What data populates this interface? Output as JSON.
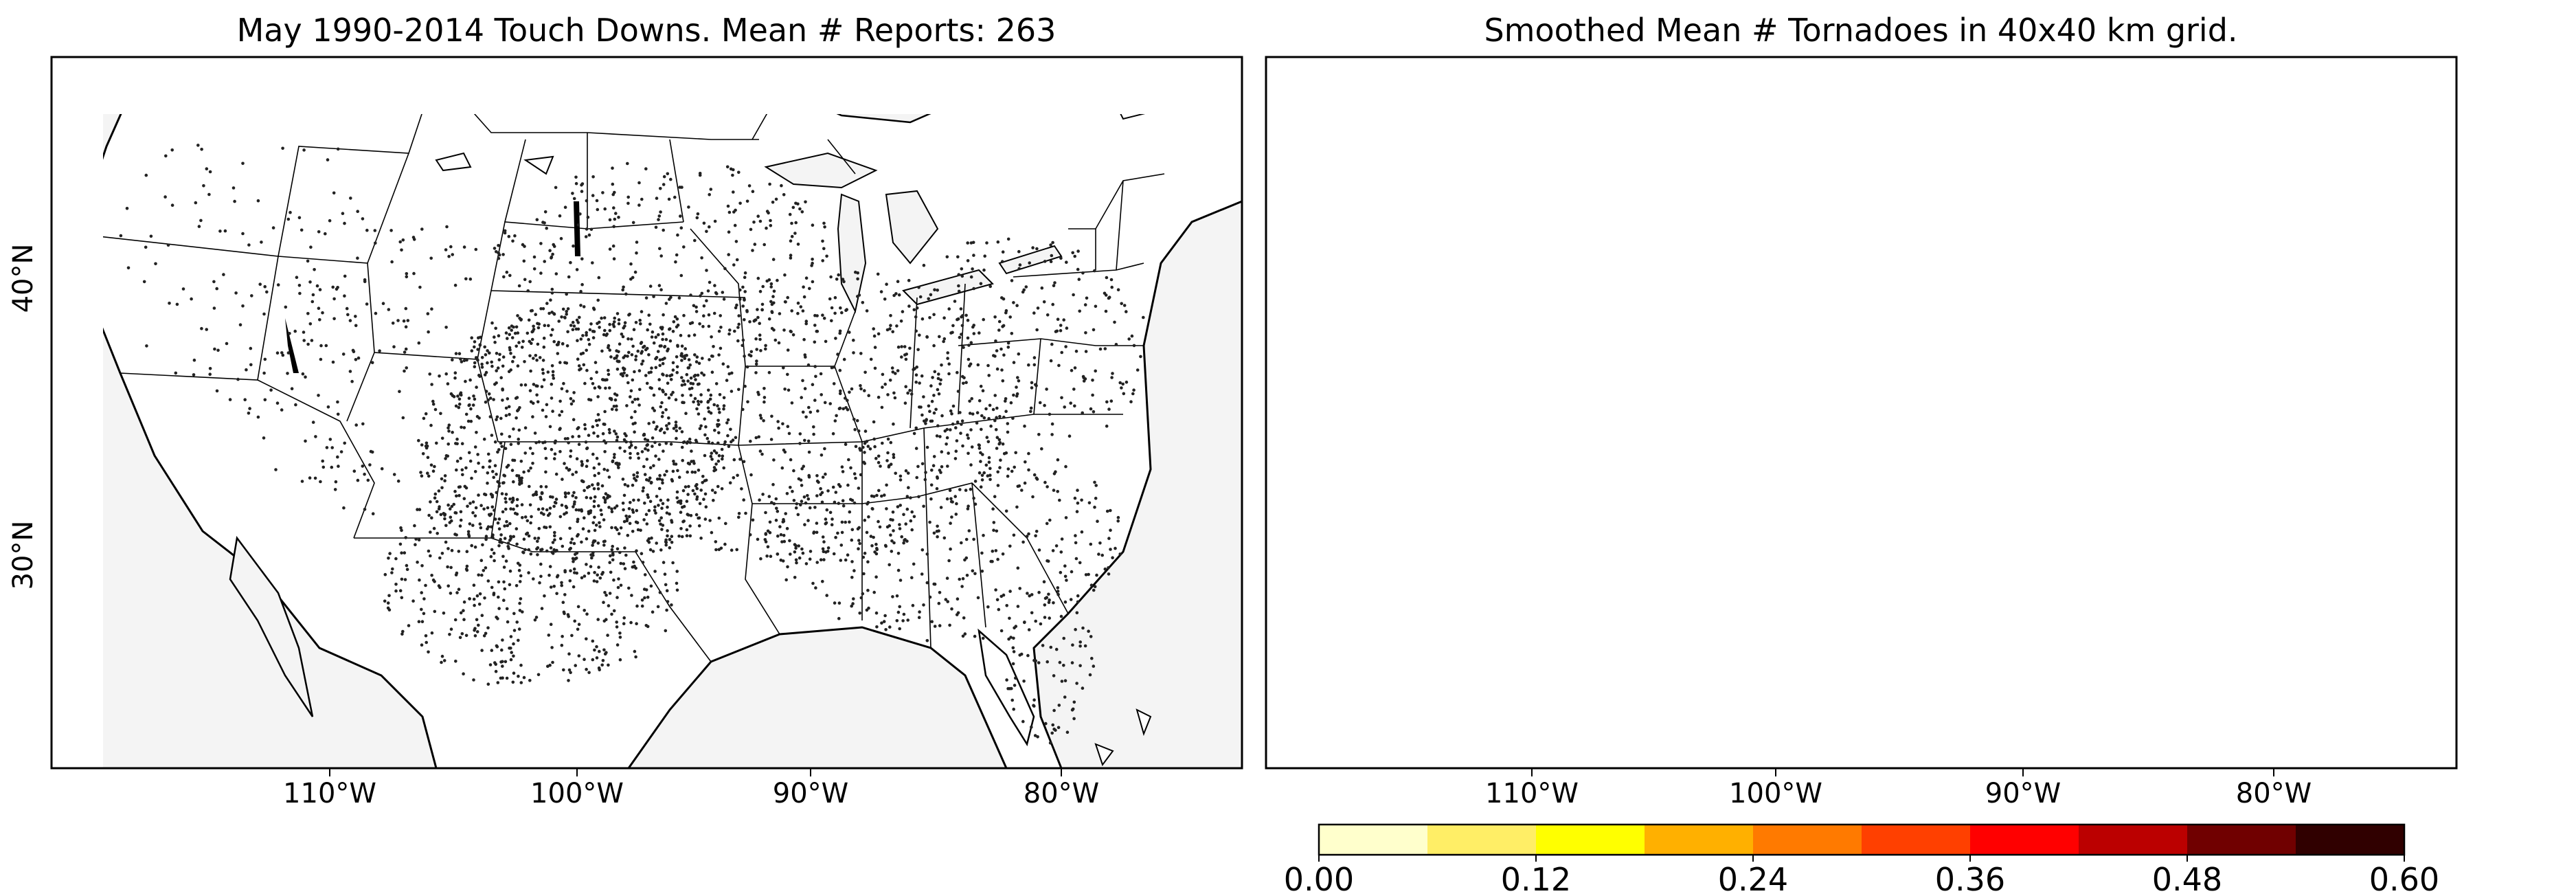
{
  "panels": [
    {
      "title": "May 1990-2014 Touch Downs. Mean # Reports: 263",
      "kind": "points"
    },
    {
      "title": "Smoothed Mean # Tornadoes in 40x40 km grid.",
      "kind": "contour"
    }
  ],
  "axes": {
    "x_ticks": [
      "110°W",
      "100°W",
      "90°W",
      "80°W"
    ],
    "y_ticks": [
      "40°N",
      "30°N"
    ]
  },
  "colorbar": {
    "tick_labels": [
      "0.00",
      "0.12",
      "0.24",
      "0.36",
      "0.48",
      "0.60"
    ],
    "range": [
      0,
      0.6
    ],
    "colors": [
      "#ffffcc",
      "#ffee66",
      "#ffff00",
      "#ffb000",
      "#ff7a00",
      "#ff4000",
      "#ff0000",
      "#bb0000",
      "#700000",
      "#300000"
    ]
  },
  "colors": {
    "land": "#ffffff",
    "water": "#f4f4f4",
    "lines": "#000000"
  }
}
